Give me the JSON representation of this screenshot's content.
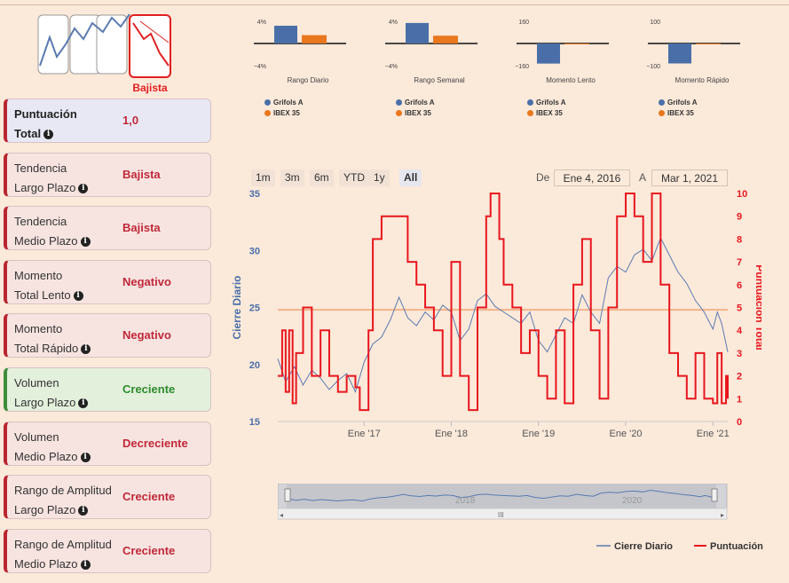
{
  "trend_icon": {
    "label": "Bajista"
  },
  "cards": [
    {
      "label_line1": "Puntuación",
      "label_line2": "Total",
      "value": "1,0",
      "status": "total"
    },
    {
      "label_line1": "Tendencia",
      "label_line2": "Largo Plazo",
      "value": "Bajista",
      "status": "bad"
    },
    {
      "label_line1": "Tendencia",
      "label_line2": "Medio Plazo",
      "value": "Bajista",
      "status": "bad"
    },
    {
      "label_line1": "Momento",
      "label_line2": "Total Lento",
      "value": "Negativo",
      "status": "bad"
    },
    {
      "label_line1": "Momento",
      "label_line2": "Total Rápido",
      "value": "Negativo",
      "status": "bad"
    },
    {
      "label_line1": "Volumen",
      "label_line2": "Largo Plazo",
      "value": "Creciente",
      "status": "good"
    },
    {
      "label_line1": "Volumen",
      "label_line2": "Medio Plazo",
      "value": "Decreciente",
      "status": "bad"
    },
    {
      "label_line1": "Rango de Amplitud",
      "label_line2": "Largo Plazo",
      "value": "Creciente",
      "status": "bad"
    },
    {
      "label_line1": "Rango de Amplitud",
      "label_line2": "Medio Plazo",
      "value": "Creciente",
      "status": "bad"
    }
  ],
  "info_icon": "i",
  "chart_data": [
    {
      "type": "bar",
      "title": "Rango Diario",
      "ymax_label": "4%",
      "ymin_label": "−4%",
      "ylim": [
        -4,
        4
      ],
      "series": [
        {
          "name": "Grifols A",
          "values": [
            3.2
          ]
        },
        {
          "name": "IBEX 35",
          "values": [
            1.5
          ]
        }
      ]
    },
    {
      "type": "bar",
      "title": "Rango Semanal",
      "ymax_label": "4%",
      "ymin_label": "−4%",
      "ylim": [
        -4,
        4
      ],
      "series": [
        {
          "name": "Grifols A",
          "values": [
            3.7
          ]
        },
        {
          "name": "IBEX 35",
          "values": [
            1.4
          ]
        }
      ]
    },
    {
      "type": "bar",
      "title": "Momento Lento",
      "ymax_label": "160",
      "ymin_label": "−160",
      "ylim": [
        -160,
        160
      ],
      "series": [
        {
          "name": "Grifols A",
          "values": [
            -145
          ]
        },
        {
          "name": "IBEX 35",
          "values": [
            -5
          ]
        }
      ]
    },
    {
      "type": "bar",
      "title": "Momento Rápido",
      "ymax_label": "100",
      "ymin_label": "−100",
      "ylim": [
        -100,
        100
      ],
      "series": [
        {
          "name": "Grifols A",
          "values": [
            -90
          ]
        },
        {
          "name": "IBEX 35",
          "values": [
            -3
          ]
        }
      ]
    },
    {
      "type": "line",
      "yaxis_left": {
        "label": "Cierre Diario",
        "ticks": [
          "15",
          "20",
          "25",
          "30",
          "35"
        ],
        "ylim": [
          15,
          35
        ]
      },
      "yaxis_right": {
        "label": "Puntuación Total",
        "ticks": [
          "0",
          "1",
          "2",
          "3",
          "4",
          "5",
          "6",
          "7",
          "8",
          "9",
          "10"
        ],
        "ylim": [
          0,
          10
        ]
      },
      "x_ticks": [
        "Ene '17",
        "Ene '18",
        "Ene '19",
        "Ene '20",
        "Ene '21"
      ],
      "x_tick_values": [
        2017.0,
        2018.0,
        2019.0,
        2020.0,
        2021.0
      ],
      "xlim": [
        2016.01,
        2021.17
      ],
      "plot_line_value": 24.8,
      "series": [
        {
          "name": "Cierre Diario",
          "color": "#5b7bb0",
          "x": [
            2016.01,
            2016.1,
            2016.2,
            2016.3,
            2016.4,
            2016.5,
            2016.6,
            2016.7,
            2016.8,
            2016.9,
            2017.0,
            2017.1,
            2017.2,
            2017.3,
            2017.4,
            2017.5,
            2017.6,
            2017.7,
            2017.8,
            2017.9,
            2018.0,
            2018.1,
            2018.2,
            2018.3,
            2018.4,
            2018.5,
            2018.6,
            2018.7,
            2018.8,
            2018.9,
            2019.0,
            2019.1,
            2019.2,
            2019.3,
            2019.4,
            2019.5,
            2019.6,
            2019.7,
            2019.8,
            2019.9,
            2020.0,
            2020.1,
            2020.2,
            2020.3,
            2020.4,
            2020.5,
            2020.6,
            2020.7,
            2020.8,
            2020.9,
            2021.0,
            2021.05,
            2021.1,
            2021.17
          ],
          "y": [
            20.5,
            18.5,
            19.8,
            18.2,
            19.5,
            18.8,
            17.8,
            18.6,
            19.2,
            17.6,
            20.2,
            21.8,
            22.4,
            23.9,
            25.9,
            24.1,
            23.4,
            24.6,
            23.9,
            25.2,
            24.6,
            22.1,
            23.1,
            25.6,
            26.2,
            25.1,
            24.6,
            24.1,
            23.6,
            24.6,
            22.1,
            21.1,
            22.6,
            24.1,
            23.6,
            26.1,
            24.6,
            23.6,
            27.6,
            28.6,
            28.1,
            29.6,
            30.1,
            29.1,
            31.1,
            29.6,
            28.1,
            27.1,
            25.6,
            24.6,
            23.1,
            24.6,
            23.6,
            21.1
          ]
        },
        {
          "name": "Puntuación",
          "color": "#e8161e",
          "x": [
            2016.01,
            2016.06,
            2016.1,
            2016.14,
            2016.18,
            2016.22,
            2016.3,
            2016.4,
            2016.5,
            2016.6,
            2016.7,
            2016.8,
            2016.9,
            2016.95,
            2017.05,
            2017.1,
            2017.2,
            2017.3,
            2017.4,
            2017.5,
            2017.6,
            2017.7,
            2017.8,
            2017.9,
            2018.0,
            2018.1,
            2018.2,
            2018.3,
            2018.4,
            2018.45,
            2018.55,
            2018.6,
            2018.7,
            2018.8,
            2018.9,
            2019.0,
            2019.1,
            2019.2,
            2019.3,
            2019.4,
            2019.5,
            2019.6,
            2019.7,
            2019.8,
            2019.9,
            2020.0,
            2020.1,
            2020.2,
            2020.3,
            2020.4,
            2020.5,
            2020.6,
            2020.7,
            2020.8,
            2020.9,
            2021.0,
            2021.05,
            2021.1,
            2021.15,
            2021.17
          ],
          "y": [
            2,
            4,
            1.3,
            4,
            0.8,
            3,
            5,
            2,
            4,
            2,
            1.3,
            2,
            1.5,
            0.5,
            4,
            8,
            9,
            9,
            9,
            7,
            6,
            5,
            4,
            2,
            7,
            2,
            0.5,
            5,
            9,
            10,
            8,
            6,
            5,
            3,
            4,
            2,
            1,
            4,
            0.8,
            6,
            8,
            4,
            1,
            5,
            9,
            10,
            9,
            7,
            10,
            6,
            3,
            2,
            1,
            3,
            1,
            0.8,
            3,
            0.8,
            2,
            1
          ]
        }
      ]
    }
  ],
  "range_selector": {
    "buttons": [
      "1m",
      "3m",
      "6m",
      "YTD",
      "1y",
      "All"
    ],
    "active": "All",
    "from_label": "De",
    "from_value": "Ene 4, 2016",
    "to_label": "A",
    "to_value": "Mar 1, 2021"
  },
  "navigator": {
    "labels": [
      "2018",
      "2020"
    ],
    "grip": "III"
  },
  "legend": {
    "items": [
      "Cierre Diario",
      "Puntuación"
    ]
  },
  "colors": {
    "grifols": "#4a6fa8",
    "ibex": "#e8771e",
    "price_line": "#5b7bb0",
    "score_line": "#e8161e",
    "bad": "#c0283a",
    "good": "#2e8b2e"
  }
}
